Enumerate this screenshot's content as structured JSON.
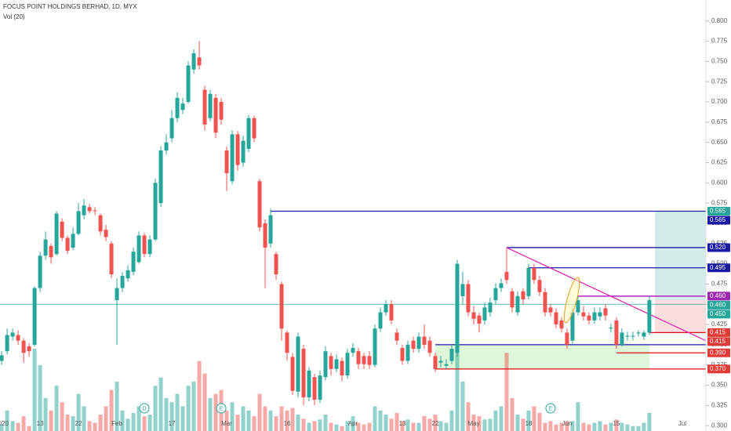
{
  "chart_data": {
    "type": "candlestick",
    "title": "FOCUS POINT HOLDINGS BERHAD, 1D, MYX",
    "subtitle": "Vol (20)",
    "up_color": "#26a69a",
    "down_color": "#ef5350",
    "open": [
      0.38,
      0.392,
      0.41,
      0.412,
      0.405,
      0.398,
      0.4,
      0.47,
      0.51,
      0.522,
      0.512,
      0.552,
      0.532,
      0.52,
      0.537,
      0.56,
      0.57,
      0.566,
      0.56,
      0.542,
      0.525,
      0.455,
      0.47,
      0.482,
      0.49,
      0.502,
      0.535,
      0.512,
      0.53,
      0.575,
      0.64,
      0.655,
      0.68,
      0.69,
      0.7,
      0.74,
      0.755,
      0.715,
      0.68,
      0.705,
      0.7,
      0.64,
      0.602,
      0.66,
      0.625,
      0.642,
      0.68,
      0.602,
      0.55,
      0.525,
      0.512,
      0.475,
      0.415,
      0.385,
      0.342,
      0.395,
      0.335,
      0.36,
      0.332,
      0.36,
      0.386,
      0.37,
      0.38,
      0.362,
      0.39,
      0.392,
      0.386,
      0.386,
      0.375,
      0.42,
      0.44,
      0.45,
      0.415,
      0.396,
      0.38,
      0.405,
      0.395,
      0.41,
      0.405,
      0.386,
      0.378,
      0.374,
      0.38,
      0.39,
      0.46,
      0.475,
      0.44,
      0.436,
      0.43,
      0.44,
      0.455,
      0.47,
      0.49,
      0.466,
      0.44,
      0.466,
      0.46,
      0.495,
      0.48,
      0.465,
      0.446,
      0.44,
      0.43,
      0.415,
      0.405,
      0.44,
      0.44,
      0.436,
      0.43,
      0.435,
      0.445,
      0.42,
      0.43,
      0.4,
      0.41,
      0.41,
      0.414,
      0.41,
      0.415
    ],
    "high": [
      0.392,
      0.42,
      0.42,
      0.418,
      0.408,
      0.402,
      0.472,
      0.515,
      0.54,
      0.525,
      0.565,
      0.556,
      0.535,
      0.545,
      0.575,
      0.58,
      0.574,
      0.57,
      0.562,
      0.548,
      0.528,
      0.482,
      0.49,
      0.498,
      0.52,
      0.54,
      0.538,
      0.535,
      0.605,
      0.645,
      0.66,
      0.69,
      0.712,
      0.705,
      0.75,
      0.765,
      0.775,
      0.72,
      0.715,
      0.71,
      0.705,
      0.645,
      0.665,
      0.664,
      0.658,
      0.684,
      0.683,
      0.605,
      0.555,
      0.568,
      0.515,
      0.478,
      0.418,
      0.39,
      0.415,
      0.4,
      0.372,
      0.364,
      0.368,
      0.398,
      0.39,
      0.388,
      0.384,
      0.395,
      0.402,
      0.396,
      0.39,
      0.392,
      0.425,
      0.446,
      0.455,
      0.455,
      0.42,
      0.4,
      0.405,
      0.41,
      0.415,
      0.425,
      0.41,
      0.39,
      0.386,
      0.382,
      0.4,
      0.505,
      0.49,
      0.48,
      0.448,
      0.44,
      0.452,
      0.458,
      0.476,
      0.482,
      0.52,
      0.47,
      0.466,
      0.47,
      0.5,
      0.5,
      0.485,
      0.47,
      0.45,
      0.445,
      0.434,
      0.42,
      0.445,
      0.46,
      0.448,
      0.44,
      0.446,
      0.446,
      0.45,
      0.426,
      0.434,
      0.42,
      0.416,
      0.416,
      0.418,
      0.418,
      0.46
    ],
    "low": [
      0.375,
      0.388,
      0.405,
      0.4,
      0.378,
      0.385,
      0.398,
      0.465,
      0.505,
      0.5,
      0.51,
      0.528,
      0.512,
      0.517,
      0.535,
      0.555,
      0.562,
      0.56,
      0.535,
      0.528,
      0.482,
      0.4,
      0.465,
      0.478,
      0.486,
      0.5,
      0.508,
      0.508,
      0.528,
      0.57,
      0.635,
      0.65,
      0.675,
      0.685,
      0.698,
      0.735,
      0.74,
      0.665,
      0.676,
      0.655,
      0.672,
      0.59,
      0.598,
      0.615,
      0.62,
      0.638,
      0.65,
      0.54,
      0.47,
      0.52,
      0.48,
      0.405,
      0.38,
      0.338,
      0.335,
      0.325,
      0.33,
      0.325,
      0.328,
      0.356,
      0.362,
      0.366,
      0.355,
      0.358,
      0.385,
      0.37,
      0.37,
      0.37,
      0.372,
      0.416,
      0.436,
      0.425,
      0.4,
      0.375,
      0.376,
      0.39,
      0.39,
      0.395,
      0.385,
      0.366,
      0.372,
      0.37,
      0.376,
      0.385,
      0.45,
      0.435,
      0.425,
      0.415,
      0.425,
      0.435,
      0.45,
      0.465,
      0.475,
      0.44,
      0.436,
      0.45,
      0.456,
      0.475,
      0.46,
      0.435,
      0.435,
      0.42,
      0.415,
      0.395,
      0.4,
      0.436,
      0.43,
      0.425,
      0.426,
      0.43,
      0.43,
      0.415,
      0.395,
      0.398,
      0.405,
      0.405,
      0.41,
      0.406,
      0.412
    ],
    "close": [
      0.387,
      0.412,
      0.415,
      0.405,
      0.39,
      0.392,
      0.47,
      0.51,
      0.53,
      0.508,
      0.562,
      0.532,
      0.516,
      0.537,
      0.565,
      0.572,
      0.565,
      0.565,
      0.54,
      0.533,
      0.487,
      0.47,
      0.485,
      0.492,
      0.515,
      0.535,
      0.512,
      0.53,
      0.6,
      0.64,
      0.65,
      0.68,
      0.705,
      0.698,
      0.745,
      0.76,
      0.745,
      0.672,
      0.71,
      0.662,
      0.678,
      0.612,
      0.66,
      0.622,
      0.652,
      0.68,
      0.655,
      0.545,
      0.52,
      0.56,
      0.487,
      0.42,
      0.39,
      0.343,
      0.41,
      0.335,
      0.368,
      0.332,
      0.362,
      0.392,
      0.37,
      0.382,
      0.362,
      0.39,
      0.396,
      0.376,
      0.376,
      0.375,
      0.42,
      0.44,
      0.45,
      0.43,
      0.405,
      0.38,
      0.4,
      0.395,
      0.41,
      0.4,
      0.39,
      0.37,
      0.38,
      0.376,
      0.395,
      0.5,
      0.475,
      0.44,
      0.432,
      0.426,
      0.446,
      0.452,
      0.47,
      0.476,
      0.48,
      0.446,
      0.46,
      0.456,
      0.495,
      0.48,
      0.465,
      0.44,
      0.44,
      0.425,
      0.42,
      0.4,
      0.44,
      0.455,
      0.435,
      0.43,
      0.44,
      0.44,
      0.436,
      0.421,
      0.4,
      0.415,
      0.411,
      0.411,
      0.415,
      0.415,
      0.455
    ],
    "volume": [
      8,
      25,
      12,
      10,
      18,
      6,
      100,
      80,
      40,
      25,
      55,
      35,
      20,
      18,
      45,
      30,
      12,
      10,
      20,
      30,
      50,
      60,
      25,
      15,
      22,
      30,
      18,
      20,
      55,
      65,
      40,
      35,
      45,
      30,
      55,
      60,
      85,
      70,
      40,
      45,
      50,
      25,
      35,
      20,
      30,
      25,
      18,
      45,
      30,
      25,
      18,
      30,
      25,
      28,
      20,
      15,
      10,
      12,
      14,
      20,
      10,
      8,
      6,
      12,
      18,
      10,
      8,
      10,
      30,
      25,
      20,
      15,
      22,
      12,
      14,
      10,
      10,
      18,
      15,
      20,
      12,
      10,
      25,
      105,
      60,
      35,
      20,
      18,
      14,
      15,
      25,
      30,
      95,
      40,
      20,
      15,
      25,
      30,
      22,
      10,
      12,
      8,
      10,
      12,
      12,
      35,
      10,
      8,
      10,
      12,
      8,
      10,
      14,
      10,
      8,
      6,
      6,
      10,
      22
    ],
    "volume_ylim": [
      0,
      500
    ],
    "xlim": [
      -0.3,
      128.3
    ],
    "xticks": [
      {
        "value": 0,
        "label": "2020"
      },
      {
        "value": 7,
        "label": "13"
      },
      {
        "value": 14,
        "label": "22"
      },
      {
        "value": 21,
        "label": "Feb"
      },
      {
        "value": 31,
        "label": "17"
      },
      {
        "value": 41,
        "label": "Mar"
      },
      {
        "value": 52,
        "label": "16"
      },
      {
        "value": 64,
        "label": "Apr"
      },
      {
        "value": 73,
        "label": "13"
      },
      {
        "value": 79,
        "label": "22"
      },
      {
        "value": 86,
        "label": "May"
      },
      {
        "value": 96,
        "label": "18"
      },
      {
        "value": 103,
        "label": "Jun"
      },
      {
        "value": 112,
        "label": "15"
      },
      {
        "value": 124,
        "label": "Jul"
      }
    ],
    "ylim": [
      0.2934,
      0.8259
    ],
    "yticks": [
      {
        "value": 0.3,
        "label": "0.300"
      },
      {
        "value": 0.325,
        "label": "0.325"
      },
      {
        "value": 0.35,
        "label": "0.350"
      },
      {
        "value": 0.375,
        "label": "0.375"
      },
      {
        "value": 0.4,
        "label": "0.400"
      },
      {
        "value": 0.425,
        "label": "0.425"
      },
      {
        "value": 0.45,
        "label": "0.450"
      },
      {
        "value": 0.475,
        "label": "0.475"
      },
      {
        "value": 0.5,
        "label": "0.500"
      },
      {
        "value": 0.525,
        "label": "0.525"
      },
      {
        "value": 0.55,
        "label": "0.550"
      },
      {
        "value": 0.575,
        "label": "0.575"
      },
      {
        "value": 0.6,
        "label": "0.600"
      },
      {
        "value": 0.625,
        "label": "0.625"
      },
      {
        "value": 0.65,
        "label": "0.650"
      },
      {
        "value": 0.675,
        "label": "0.675"
      },
      {
        "value": 0.7,
        "label": "0.700"
      },
      {
        "value": 0.725,
        "label": "0.725"
      },
      {
        "value": 0.75,
        "label": "0.750"
      },
      {
        "value": 0.775,
        "label": "0.775"
      },
      {
        "value": 0.8,
        "label": "0.800"
      }
    ],
    "current_price": 0.45,
    "levels": [
      {
        "value": 0.565,
        "start": 49,
        "color": "#1a1aa6"
      },
      {
        "value": 0.52,
        "start": 92,
        "color": "#1a1aa6"
      },
      {
        "value": 0.495,
        "start": 96,
        "color": "#1a1aa6"
      },
      {
        "value": 0.46,
        "start": 105,
        "color": "#b010c0"
      },
      {
        "value": 0.415,
        "start": 118,
        "color": "#e01010"
      },
      {
        "value": 0.39,
        "start": 112,
        "color": "#e01010"
      },
      {
        "value": 0.37,
        "start": 79,
        "color": "#e01010"
      },
      {
        "value": 0.4,
        "start": 79,
        "color": "#1a1aa6"
      }
    ],
    "trend_line": {
      "x": [
        92,
        128.3
      ],
      "y": [
        0.52,
        0.405
      ],
      "color": "#e020b0"
    },
    "zone": {
      "start": 79,
      "end": 118,
      "low": 0.37,
      "high": 0.4,
      "color": "#dff7d9"
    },
    "position": {
      "start": 119,
      "entry": 0.455,
      "target": 0.565,
      "stop": 0.415
    },
    "price_labels": [
      {
        "value": 0.565,
        "label": "0.565",
        "color": "#26a69a"
      },
      {
        "value": 0.565,
        "label": "0.565",
        "color": "#1a1aa6"
      },
      {
        "value": 0.52,
        "label": "0.520",
        "color": "#1a1aa6"
      },
      {
        "value": 0.495,
        "label": "0.495",
        "color": "#1a1aa6"
      },
      {
        "value": 0.46,
        "label": "0.460",
        "color": "#9c27b0"
      },
      {
        "value": 0.46,
        "label": "0.460",
        "color": "#26a69a"
      },
      {
        "value": 0.45,
        "label": "0.450",
        "color": "#26a69a"
      },
      {
        "value": 0.415,
        "label": "0.415",
        "color": "#e53935"
      },
      {
        "value": 0.415,
        "label": "0.415",
        "color": "#e53935"
      },
      {
        "value": 0.39,
        "label": "0.390",
        "color": "#e53935"
      },
      {
        "value": 0.37,
        "label": "0.370",
        "color": "#e53935"
      }
    ],
    "events": [
      {
        "index": 26,
        "label": "D"
      },
      {
        "index": 40,
        "label": "E"
      },
      {
        "index": 100,
        "label": "E"
      }
    ]
  }
}
